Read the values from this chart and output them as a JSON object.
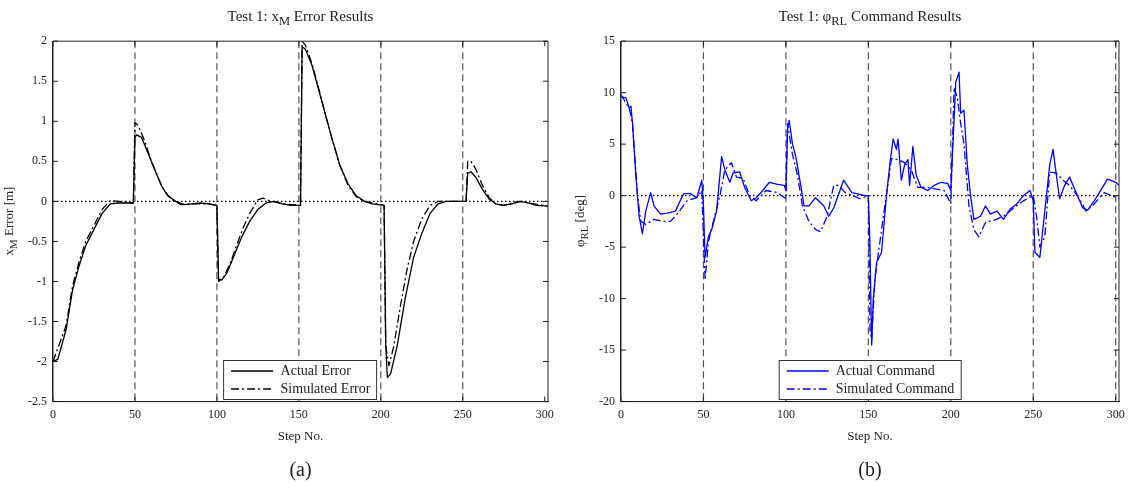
{
  "chart_data": [
    {
      "type": "line",
      "title": "Test 1: x$_{M}$ Error Results",
      "xlabel": "Step No.",
      "ylabel": "x$_{M}$ Error [m]",
      "annotations": [
        "(a)"
      ],
      "legend": "bottom",
      "grid": false,
      "xlim": [
        0,
        302
      ],
      "ylim": [
        -2.5,
        2
      ],
      "xticks": [
        0,
        50,
        100,
        150,
        200,
        250,
        300
      ],
      "yticks": [
        -2.5,
        -2,
        -1.5,
        -1,
        -0.5,
        0,
        0.5,
        1,
        1.5,
        2
      ],
      "ref_lines": [
        {
          "axis": "x",
          "value": 50,
          "color": "#555555",
          "line_style": "dashed"
        },
        {
          "axis": "x",
          "value": 100,
          "color": "#555555",
          "line_style": "dashed"
        },
        {
          "axis": "x",
          "value": 150,
          "color": "#555555",
          "line_style": "dashed"
        },
        {
          "axis": "x",
          "value": 200,
          "color": "#555555",
          "line_style": "dashed"
        },
        {
          "axis": "x",
          "value": 250,
          "color": "#555555",
          "line_style": "dashed"
        },
        {
          "axis": "y",
          "value": 0,
          "color": "#000000",
          "line_style": "dotted"
        }
      ],
      "series": [
        {
          "name": "Actual Error",
          "color": "#000000",
          "line_style": "solid",
          "x": [
            0,
            3,
            8,
            12,
            16,
            20,
            25,
            30,
            35,
            40,
            49,
            50,
            51,
            54,
            58,
            62,
            66,
            70,
            75,
            80,
            85,
            90,
            95,
            100,
            101,
            103,
            106,
            110,
            115,
            120,
            125,
            130,
            135,
            140,
            145,
            151,
            152,
            154,
            158,
            162,
            166,
            170,
            175,
            180,
            185,
            190,
            195,
            202,
            203,
            204,
            206,
            210,
            215,
            220,
            225,
            230,
            235,
            240,
            252,
            253,
            255,
            258,
            262,
            266,
            270,
            275,
            280,
            285,
            290,
            295,
            302
          ],
          "values": [
            -2.0,
            -1.97,
            -1.6,
            -1.1,
            -0.8,
            -0.55,
            -0.35,
            -0.15,
            -0.03,
            -0.02,
            -0.02,
            0.8,
            0.83,
            0.8,
            0.6,
            0.4,
            0.2,
            0.07,
            0,
            -0.04,
            -0.03,
            -0.02,
            -0.03,
            -0.05,
            -0.97,
            -0.98,
            -0.9,
            -0.7,
            -0.45,
            -0.25,
            -0.1,
            -0.02,
            0,
            -0.03,
            -0.05,
            -0.05,
            1.93,
            1.9,
            1.7,
            1.4,
            1.1,
            0.8,
            0.45,
            0.22,
            0.07,
            0,
            -0.03,
            -0.05,
            -1.8,
            -2.2,
            -2.15,
            -1.8,
            -1.2,
            -0.7,
            -0.4,
            -0.15,
            -0.03,
            0,
            0,
            0.35,
            0.37,
            0.3,
            0.15,
            0.03,
            -0.03,
            -0.05,
            -0.03,
            0,
            -0.02,
            -0.05,
            -0.06
          ]
        },
        {
          "name": "Simulated Error",
          "color": "#000000",
          "line_style": "dashdot",
          "x": [
            0,
            8,
            12,
            16,
            20,
            25,
            30,
            35,
            40,
            49,
            50,
            52,
            56,
            60,
            64,
            68,
            72,
            78,
            85,
            95,
            100,
            101,
            104,
            108,
            112,
            116,
            120,
            125,
            128,
            132,
            140,
            151,
            152,
            154,
            158,
            162,
            166,
            170,
            175,
            180,
            185,
            190,
            202,
            203,
            205,
            208,
            212,
            216,
            220,
            225,
            230,
            235,
            252,
            253,
            255,
            258,
            262,
            266,
            270,
            275,
            280,
            285,
            290,
            302
          ],
          "values": [
            -2.0,
            -1.55,
            -1.05,
            -0.75,
            -0.5,
            -0.3,
            -0.1,
            0.01,
            0,
            -0.02,
            0.98,
            0.95,
            0.75,
            0.5,
            0.3,
            0.13,
            0.03,
            -0.04,
            -0.03,
            -0.03,
            -0.05,
            -1.0,
            -0.95,
            -0.78,
            -0.55,
            -0.33,
            -0.15,
            0.02,
            0.04,
            0.01,
            -0.03,
            -0.05,
            2.0,
            1.95,
            1.72,
            1.42,
            1.1,
            0.8,
            0.45,
            0.2,
            0.06,
            0,
            -0.05,
            -1.8,
            -2.05,
            -1.8,
            -1.3,
            -0.85,
            -0.5,
            -0.22,
            -0.05,
            0,
            0,
            0.5,
            0.5,
            0.4,
            0.2,
            0.05,
            -0.03,
            -0.05,
            -0.02,
            0,
            -0.02,
            -0.06
          ]
        }
      ]
    },
    {
      "type": "line",
      "title": "Test 1: φ$_{RL}$ Command Results",
      "xlabel": "Step No.",
      "ylabel": "φ$_{RL}$ [deg]",
      "annotations": [
        "(b)"
      ],
      "legend": "bottom",
      "grid": false,
      "xlim": [
        0,
        302
      ],
      "ylim": [
        -20,
        15
      ],
      "xticks": [
        0,
        50,
        100,
        150,
        200,
        250,
        300
      ],
      "yticks": [
        -20,
        -15,
        -10,
        -5,
        0,
        5,
        10,
        15
      ],
      "ref_lines": [
        {
          "axis": "x",
          "value": 50,
          "color": "#555555",
          "line_style": "dashed"
        },
        {
          "axis": "x",
          "value": 100,
          "color": "#555555",
          "line_style": "dashed"
        },
        {
          "axis": "x",
          "value": 150,
          "color": "#555555",
          "line_style": "dashed"
        },
        {
          "axis": "x",
          "value": 200,
          "color": "#555555",
          "line_style": "dashed"
        },
        {
          "axis": "x",
          "value": 250,
          "color": "#555555",
          "line_style": "dashed"
        },
        {
          "axis": "x",
          "value": 300,
          "color": "#555555",
          "line_style": "dashed"
        },
        {
          "axis": "y",
          "value": 0,
          "color": "#000000",
          "line_style": "dotted"
        }
      ],
      "series": [
        {
          "name": "Actual Command",
          "color": "#0000ff",
          "line_style": "solid",
          "x": [
            0,
            3,
            5,
            6,
            7,
            9,
            11,
            13,
            15,
            18,
            20,
            24,
            28,
            33,
            38,
            42,
            46,
            49,
            50,
            51,
            53,
            55,
            58,
            61,
            63,
            66,
            68,
            72,
            75,
            79,
            82,
            86,
            90,
            95,
            99,
            100,
            101,
            102,
            104,
            106,
            109,
            111,
            114,
            118,
            123,
            126,
            129,
            135,
            140,
            148,
            150,
            151,
            152,
            153,
            155,
            158,
            161,
            163,
            165,
            167,
            168,
            170,
            172,
            174,
            175,
            177,
            179,
            182,
            186,
            190,
            194,
            198,
            200,
            201,
            203,
            205,
            206,
            208,
            210,
            212,
            214,
            218,
            221,
            224,
            228,
            232,
            236,
            240,
            244,
            248,
            250,
            251,
            254,
            256,
            258,
            260,
            262,
            264,
            266,
            269,
            272,
            276,
            280,
            283,
            287,
            292,
            295,
            300,
            302
          ],
          "values": [
            9.6,
            9.5,
            8.5,
            8.7,
            7,
            2,
            -2,
            -3.7,
            -1.5,
            0.3,
            -1,
            -1.8,
            -1.7,
            -1.5,
            0.2,
            0.2,
            -0.2,
            1.5,
            -1,
            -6,
            -4,
            -3.3,
            -1.5,
            3.8,
            2.5,
            1.3,
            2.2,
            2.3,
            0.8,
            -0.5,
            -0.2,
            0.5,
            1.3,
            1.1,
            1,
            0.5,
            6.5,
            7.3,
            5,
            3.8,
            1,
            -1,
            -1,
            -0.2,
            -1,
            -2,
            -1.2,
            1.5,
            0.3,
            0,
            0,
            -5,
            -14.5,
            -10,
            -6.5,
            -5.5,
            0,
            3,
            5.5,
            4.5,
            5.5,
            1.5,
            3,
            3.5,
            1,
            4.8,
            2,
            0.8,
            0.5,
            1,
            1.3,
            1.2,
            0.5,
            4,
            11,
            12,
            8,
            8.3,
            3,
            0,
            -2.3,
            -2,
            -1,
            -1.8,
            -1.5,
            -2.3,
            -1.3,
            -0.8,
            0,
            0.5,
            -0.5,
            -5.5,
            -6,
            -3,
            0,
            3,
            4.5,
            2,
            -0.3,
            1,
            1.8,
            0.3,
            -1.2,
            -1.4,
            -0.5,
            0.8,
            1.6,
            1.3,
            1
          ]
        },
        {
          "name": "Simulated Command",
          "color": "#0000ff",
          "line_style": "dashdot",
          "x": [
            0,
            5,
            7,
            10,
            12,
            15,
            20,
            25,
            30,
            34,
            40,
            46,
            49,
            51,
            53,
            56,
            60,
            63,
            67,
            70,
            74,
            78,
            82,
            88,
            95,
            100,
            101,
            104,
            107,
            110,
            114,
            118,
            121,
            125,
            129,
            132,
            136,
            145,
            150,
            151,
            152,
            154,
            157,
            160,
            164,
            168,
            172,
            176,
            180,
            186,
            196,
            200,
            202,
            204,
            206,
            208,
            211,
            214,
            217,
            221,
            226,
            232,
            238,
            244,
            250,
            252,
            254,
            257,
            260,
            264,
            268,
            272,
            278,
            282,
            287,
            293,
            302
          ],
          "values": [
            9.8,
            8.5,
            7,
            0,
            -2.5,
            -2.8,
            -2.3,
            -2.5,
            -2.5,
            -1.8,
            -0.5,
            -0.2,
            0.5,
            -8.2,
            -4.5,
            -2.5,
            0,
            2.5,
            3.2,
            1.8,
            1.7,
            0,
            -0.5,
            0.5,
            0.3,
            -0.3,
            7,
            4,
            2,
            -1,
            -2.5,
            -3.3,
            -3.5,
            -2,
            1,
            1,
            0.3,
            -0.3,
            0,
            -13,
            -14,
            -8,
            -4.5,
            -1,
            3.6,
            3.5,
            3.2,
            2.5,
            0.8,
            0.8,
            0.5,
            -0.8,
            10.5,
            9.5,
            7,
            5,
            -1,
            -3.3,
            -4,
            -2.6,
            -2.4,
            -2,
            -1.2,
            -0.5,
            0,
            -2,
            -5,
            -4,
            2.3,
            2.2,
            1.5,
            1,
            -0.3,
            -1.5,
            -0.8,
            0.3,
            -0.3
          ]
        }
      ]
    }
  ]
}
